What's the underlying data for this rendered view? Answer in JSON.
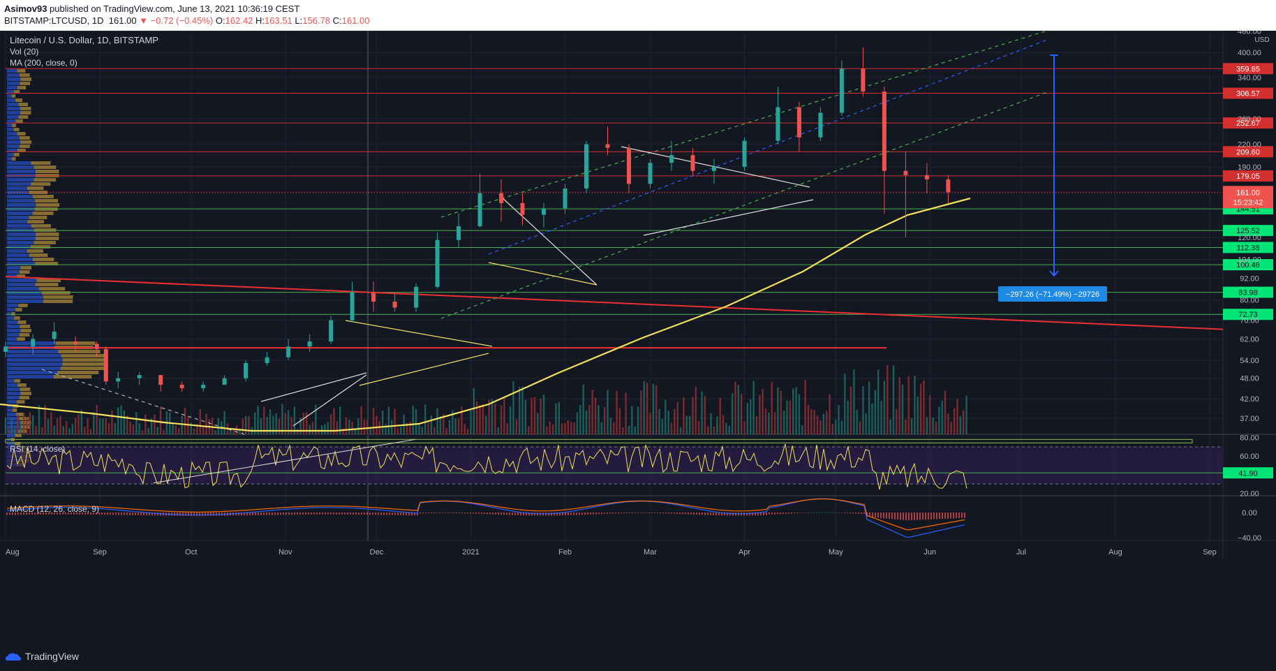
{
  "header": {
    "author": "Asimov93",
    "published_text": "published on TradingView.com, June 13, 2021 10:36:19 CEST",
    "symbol": "BITSTAMP:LTCUSD, 1D",
    "last": "161.00",
    "change": "▼ −0.72 (−0.45%)",
    "o_label": "O:",
    "o": "162.42",
    "h_label": "H:",
    "h": "163.51",
    "l_label": "L:",
    "l": "156.78",
    "c_label": "C:",
    "c": "161.00"
  },
  "legend": {
    "title": "Litecoin / U.S. Dollar, 1D, BITSTAMP",
    "vol": "Vol (20)",
    "ma": "MA (200, close, 0)",
    "rsi": "RSI (14, close)",
    "macd": "MACD (12, 26, close, 9)"
  },
  "footer": {
    "brand": "TradingView"
  },
  "chart_data": {
    "type": "candlestick",
    "currency": "USD",
    "price_scale": "log",
    "y_ticks": [
      "460.00",
      "400.00",
      "340.00",
      "260.00",
      "220.00",
      "190.00",
      "160.00",
      "120.00",
      "104.00",
      "92.00",
      "80.00",
      "70.00",
      "62.00",
      "54.00",
      "48.00",
      "42.00",
      "37.00"
    ],
    "x_ticks": [
      "Aug",
      "Sep",
      "Oct",
      "Nov",
      "Dec",
      "2021",
      "Feb",
      "Mar",
      "Apr",
      "May",
      "Jun",
      "Jul",
      "Aug",
      "Sep"
    ],
    "last_price_label": "161.00",
    "countdown": "15:23:42",
    "resistance_levels": [
      "359.85",
      "306.57",
      "252.67",
      "209.60",
      "179.05"
    ],
    "support_levels": [
      "144.51",
      "125.52",
      "112.38",
      "100.46",
      "83.98",
      "72.73"
    ],
    "measure_label": "−297.26 (−71.49%) −29726",
    "rsi": {
      "ticks": [
        "80.00",
        "60.00",
        "40.00",
        "20.00"
      ],
      "value_label": "41.90"
    },
    "macd": {
      "ticks": [
        "0.00",
        "−40.00"
      ]
    },
    "colors": {
      "up": "#26a69a",
      "down": "#ef5350",
      "ma": "#f5e15b",
      "bg": "#131722",
      "support": "#4caf50",
      "resistance": "#d32f2f",
      "measure": "#2962ff"
    },
    "candles": {
      "_note": "date, open, high, low, close (approximate, read from chart)",
      "rows": [
        [
          "2020-08-01",
          57,
          61,
          55,
          59
        ],
        [
          "2020-08-10",
          59,
          64,
          56,
          62
        ],
        [
          "2020-08-17",
          62,
          69,
          60,
          65
        ],
        [
          "2020-08-24",
          61,
          63,
          57,
          60
        ],
        [
          "2020-08-31",
          60,
          61,
          55,
          58
        ],
        [
          "2020-09-03",
          58,
          59,
          46,
          47
        ],
        [
          "2020-09-07",
          47,
          50,
          45,
          48
        ],
        [
          "2020-09-14",
          48,
          50,
          46,
          49
        ],
        [
          "2020-09-21",
          49,
          49,
          44,
          46
        ],
        [
          "2020-09-28",
          46,
          47,
          44,
          45
        ],
        [
          "2020-10-05",
          45,
          47,
          44,
          46
        ],
        [
          "2020-10-12",
          46,
          49,
          46,
          48
        ],
        [
          "2020-10-19",
          48,
          54,
          47,
          53
        ],
        [
          "2020-10-26",
          53,
          57,
          52,
          55
        ],
        [
          "2020-11-02",
          55,
          62,
          54,
          59
        ],
        [
          "2020-11-09",
          59,
          64,
          57,
          61
        ],
        [
          "2020-11-16",
          61,
          72,
          60,
          70
        ],
        [
          "2020-11-23",
          70,
          90,
          69,
          84
        ],
        [
          "2020-11-30",
          84,
          90,
          74,
          79
        ],
        [
          "2020-12-07",
          79,
          84,
          74,
          76
        ],
        [
          "2020-12-14",
          76,
          89,
          74,
          87
        ],
        [
          "2020-12-21",
          87,
          124,
          86,
          118
        ],
        [
          "2020-12-28",
          118,
          140,
          112,
          129
        ],
        [
          "2021-01-04",
          129,
          182,
          128,
          160
        ],
        [
          "2021-01-11",
          160,
          175,
          133,
          150
        ],
        [
          "2021-01-18",
          150,
          160,
          130,
          139
        ],
        [
          "2021-01-25",
          139,
          150,
          128,
          145
        ],
        [
          "2021-02-01",
          145,
          170,
          140,
          165
        ],
        [
          "2021-02-08",
          165,
          225,
          160,
          220
        ],
        [
          "2021-02-15",
          220,
          247,
          205,
          215
        ],
        [
          "2021-02-22",
          215,
          220,
          160,
          170
        ],
        [
          "2021-03-01",
          170,
          200,
          165,
          195
        ],
        [
          "2021-03-08",
          195,
          225,
          185,
          205
        ],
        [
          "2021-03-15",
          205,
          215,
          180,
          185
        ],
        [
          "2021-03-22",
          185,
          200,
          170,
          190
        ],
        [
          "2021-04-01",
          190,
          230,
          185,
          225
        ],
        [
          "2021-04-12",
          225,
          320,
          220,
          280
        ],
        [
          "2021-04-19",
          280,
          290,
          210,
          230
        ],
        [
          "2021-04-26",
          230,
          280,
          225,
          270
        ],
        [
          "2021-05-03",
          270,
          380,
          265,
          360
        ],
        [
          "2021-05-10",
          360,
          413,
          300,
          310
        ],
        [
          "2021-05-17",
          310,
          320,
          140,
          185
        ],
        [
          "2021-05-24",
          185,
          210,
          120,
          180
        ],
        [
          "2021-05-31",
          180,
          195,
          160,
          175
        ],
        [
          "2021-06-07",
          175,
          180,
          150,
          161
        ]
      ]
    }
  }
}
